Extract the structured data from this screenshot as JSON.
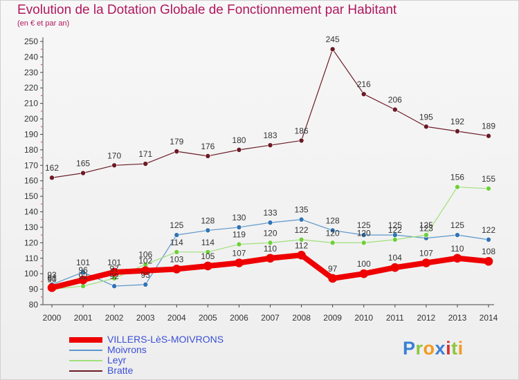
{
  "title": "Evolution de la Dotation Globale de Fonctionnement par Habitant",
  "subtitle": "(en € et par an)",
  "brand": {
    "letters": [
      "P",
      "r",
      "o",
      "x",
      "i",
      "t",
      "i"
    ],
    "colors": [
      "#3a7fd5",
      "#8cc63e",
      "#f39a1e",
      "#3a7fd5",
      "#d62f2f",
      "#8cc63e",
      "#f39a1e"
    ]
  },
  "chart_data": {
    "type": "line",
    "x": [
      "2000",
      "2001",
      "2002",
      "2003",
      "2004",
      "2005",
      "2006",
      "2007",
      "2008",
      "2009",
      "2010",
      "2011",
      "2012",
      "2013",
      "2014"
    ],
    "y_ticks": [
      "80",
      "90",
      "100",
      "110",
      "120",
      "130",
      "140",
      "150",
      "160",
      "170",
      "180",
      "190",
      "200",
      "210",
      "220",
      "230",
      "240",
      "250"
    ],
    "ylim": [
      80,
      250
    ],
    "grid": false,
    "legend_position": "bottom-left",
    "series": [
      {
        "name": "Bratte",
        "color": "#6b1a25",
        "point_color": "#6b1a25",
        "line_width": 1.2,
        "values": [
          162,
          165,
          170,
          171,
          179,
          176,
          180,
          183,
          186,
          245,
          216,
          206,
          195,
          192,
          189
        ],
        "labels": [
          "162",
          "165",
          "170",
          "171",
          "179",
          "176",
          "180",
          "183",
          "186",
          "245",
          "216",
          "206",
          "195",
          "192",
          "189"
        ]
      },
      {
        "name": "Moivrons",
        "color": "#5b96cc",
        "point_color": "#2f74b5",
        "line_width": 1.2,
        "values": [
          93,
          101,
          92,
          93,
          125,
          128,
          130,
          133,
          135,
          128,
          125,
          125,
          123,
          125,
          122
        ],
        "labels": [
          "93",
          "101",
          "92",
          "93",
          "125",
          "128",
          "130",
          "133",
          "135",
          "128",
          "125",
          "125",
          "123",
          "125",
          "122"
        ]
      },
      {
        "name": "Leyr",
        "color": "#9fe07a",
        "point_color": "#6fcf3a",
        "line_width": 1.2,
        "values": [
          90,
          92,
          97,
          106,
          114,
          114,
          119,
          120,
          122,
          120,
          120,
          122,
          125,
          156,
          155
        ],
        "labels": [
          "90",
          "92",
          "97",
          "106",
          "114",
          "114",
          "119",
          "120",
          "122",
          "120",
          "120",
          "122",
          "125",
          "156",
          "155"
        ]
      },
      {
        "name": "VILLERS-LèS-MOIVRONS",
        "color": "#ee0000",
        "point_color": "#ee0000",
        "line_width": 8,
        "values": [
          91,
          96,
          101,
          102,
          103,
          105,
          107,
          110,
          112,
          97,
          100,
          104,
          107,
          110,
          108
        ],
        "labels": [
          "91",
          "96",
          "101",
          "102",
          "103",
          "105",
          "107",
          "110",
          "112",
          "97",
          "100",
          "104",
          "107",
          "110",
          "108"
        ]
      }
    ]
  },
  "legend": [
    {
      "label": "VILLERS-LèS-MOIVRONS",
      "color": "#ee0000",
      "thickness": 8
    },
    {
      "label": "Moivrons",
      "color": "#5b96cc",
      "thickness": 2
    },
    {
      "label": "Leyr",
      "color": "#9fe07a",
      "thickness": 2
    },
    {
      "label": "Bratte",
      "color": "#6b1a25",
      "thickness": 2
    }
  ]
}
